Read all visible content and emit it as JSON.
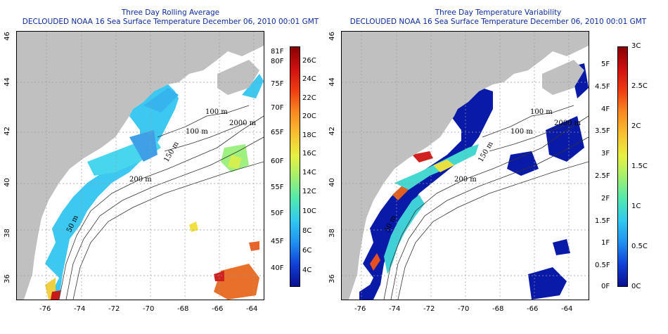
{
  "left_panel": {
    "title_line1": "Three Day Rolling Average",
    "title_line2": "DECLOUDED NOAA 16 Sea Surface Temperature December 06, 2010 00:01 GMT",
    "colorbar_left": [
      "81F",
      "80F",
      "75F",
      "70F",
      "65F",
      "60F",
      "55F",
      "50F",
      "45F",
      "40F"
    ],
    "colorbar_right": [
      "26C",
      "24C",
      "22C",
      "20C",
      "18C",
      "16C",
      "14C",
      "12C",
      "10C",
      "8C",
      "6C",
      "4C"
    ]
  },
  "right_panel": {
    "title_line1": "Three Day Temperature Variability",
    "title_line2": "DECLOUDED NOAA 16 Sea Surface Temperature December 06, 2010 00:01 GMT",
    "colorbar_left": [
      "5F",
      "4.5F",
      "4F",
      "3.5F",
      "3F",
      "2.5F",
      "2F",
      "1.5F",
      "1F",
      "0.5F",
      "0F"
    ],
    "colorbar_right": [
      "3C",
      "2.5C",
      "2C",
      "1.5C",
      "1C",
      "0.5C",
      "0C"
    ]
  },
  "lon_ticks": [
    "-76",
    "-74",
    "-72",
    "-70",
    "-68",
    "-66",
    "-64"
  ],
  "lat_ticks": [
    "36",
    "38",
    "40",
    "42",
    "44",
    "46"
  ],
  "contour_labels": [
    "100 m",
    "100 m",
    "2000 m",
    "150 m",
    "200 m",
    "50 m"
  ],
  "colors": {
    "title": "#0a2a9c",
    "land": "#c0c0c0",
    "ocean": "#ffffff",
    "contour": "#333333"
  }
}
